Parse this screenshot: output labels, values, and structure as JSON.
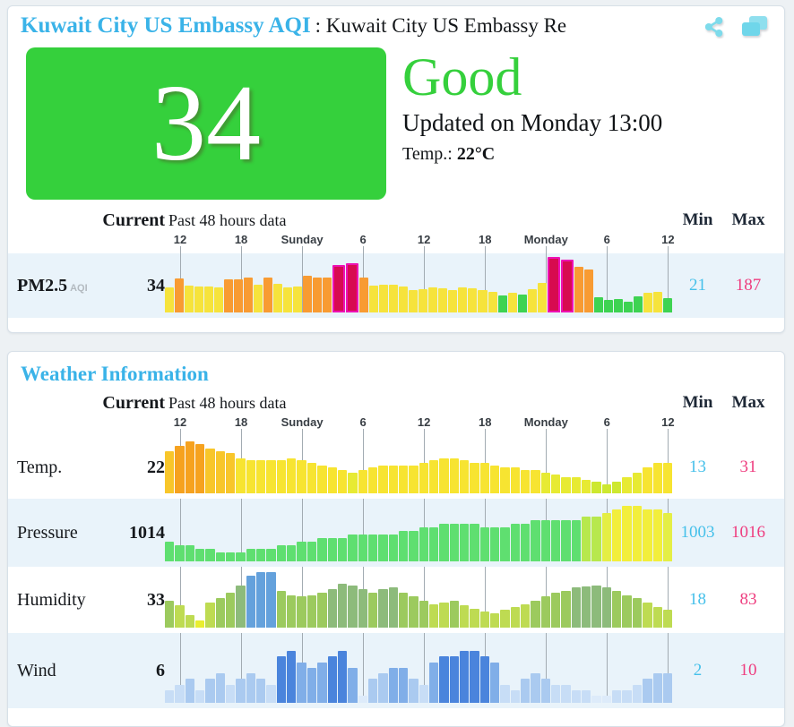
{
  "colors": {
    "accent_blue": "#3ab3e8",
    "good_green": "#35d03c",
    "min_blue": "#45c0ea",
    "max_pink": "#ee3d7f",
    "row_band": "#e9f3fa",
    "icon_cyan": "#7edbeb"
  },
  "card1": {
    "title_blue": "Kuwait City US Embassy AQI",
    "title_rest": ": Kuwait City US Embassy Re",
    "icons": [
      "share-icon",
      "copy-icon"
    ],
    "aqi": {
      "value": "34",
      "category": "Good",
      "updated": "Updated on Monday 13:00",
      "temp_label": "Temp.:",
      "temp_value": "22°C"
    },
    "header": {
      "current": "Current",
      "past": "Past 48 hours data",
      "min": "Min",
      "max": "Max"
    }
  },
  "card2": {
    "title": "Weather Information",
    "header": {
      "current": "Current",
      "past": "Past 48 hours data",
      "min": "Min",
      "max": "Max"
    }
  },
  "ticks": {
    "labels": [
      "12",
      "18",
      "Sunday",
      "6",
      "12",
      "18",
      "Monday",
      "6",
      "12"
    ],
    "positions": [
      1,
      7,
      13,
      19,
      25,
      31,
      37,
      43,
      49
    ]
  },
  "chart_data": [
    {
      "id": "pm25",
      "type": "bar",
      "card": 1,
      "row_label": "PM2.5",
      "row_sublabel": "AQI",
      "bold_label": true,
      "title": "PM2.5 AQI past 48 hours",
      "current": 34,
      "min": 21,
      "max": 187,
      "band": "blue",
      "band_height": 72,
      "hscale": {
        "floor": 0,
        "ceil": 187,
        "base": 6,
        "span": 56
      },
      "scale": [
        {
          "max": 50,
          "color": "#3ed352"
        },
        {
          "max": 100,
          "color": "#f6e33c"
        },
        {
          "max": 150,
          "color": "#f89b32"
        },
        {
          "max": 999,
          "color": "#d70b50",
          "border": "#ee12b4"
        }
      ],
      "values": [
        72,
        108,
        80,
        78,
        76,
        75,
        104,
        103,
        112,
        84,
        110,
        88,
        72,
        76,
        118,
        112,
        112,
        158,
        164,
        112,
        80,
        82,
        84,
        78,
        64,
        68,
        74,
        70,
        64,
        74,
        70,
        64,
        58,
        44,
        54,
        46,
        66,
        90,
        187,
        176,
        149,
        139,
        36,
        26,
        30,
        21,
        40,
        54,
        56,
        34
      ]
    },
    {
      "id": "temp",
      "type": "bar",
      "card": 2,
      "row_label": "Temp.",
      "row_sublabel": "",
      "bold_label": false,
      "title": "Temperature past 48 hours",
      "current": 22,
      "min": 13,
      "max": 31,
      "band": "white",
      "band_height": 70,
      "hscale": {
        "floor": 13,
        "ceil": 31,
        "base": 10,
        "span": 48
      },
      "scale": [
        {
          "max": 14,
          "color": "#cde82f"
        },
        {
          "max": 18,
          "color": "#e7ea33"
        },
        {
          "max": 24,
          "color": "#f7e431"
        },
        {
          "max": 28,
          "color": "#f8c62a"
        },
        {
          "max": 99,
          "color": "#f6a21f"
        }
      ],
      "values": [
        27,
        29,
        31,
        30,
        28,
        27,
        26,
        24,
        23,
        23,
        23,
        23,
        24,
        23,
        22,
        21,
        20,
        19,
        18,
        19,
        20,
        21,
        21,
        21,
        21,
        22,
        23,
        24,
        24,
        23,
        22,
        22,
        21,
        20,
        20,
        19,
        19,
        18,
        17,
        16,
        16,
        15,
        14,
        13,
        14,
        16,
        18,
        20,
        22,
        22
      ]
    },
    {
      "id": "pressure",
      "type": "bar",
      "card": 2,
      "row_label": "Pressure",
      "row_sublabel": "",
      "bold_label": false,
      "title": "Pressure past 48 hours",
      "current": 1014,
      "min": 1003,
      "max": 1016,
      "band": "blue",
      "band_height": 76,
      "hscale": {
        "floor": 1003,
        "ceil": 1016,
        "base": 10,
        "span": 52
      },
      "scale": [
        {
          "max": 1012,
          "color": "#5fdf70"
        },
        {
          "max": 1013,
          "color": "#b7e84d"
        },
        {
          "max": 1014,
          "color": "#e4ee45"
        },
        {
          "max": 2000,
          "color": "#f2ee3c"
        }
      ],
      "values": [
        1006,
        1005,
        1005,
        1004,
        1004,
        1003,
        1003,
        1003,
        1004,
        1004,
        1004,
        1005,
        1005,
        1006,
        1006,
        1007,
        1007,
        1007,
        1008,
        1008,
        1008,
        1008,
        1008,
        1009,
        1009,
        1010,
        1010,
        1011,
        1011,
        1011,
        1011,
        1010,
        1010,
        1010,
        1011,
        1011,
        1012,
        1012,
        1012,
        1012,
        1012,
        1013,
        1013,
        1014,
        1015,
        1016,
        1016,
        1015,
        1015,
        1014
      ]
    },
    {
      "id": "humidity",
      "type": "bar",
      "card": 2,
      "row_label": "Humidity",
      "row_sublabel": "",
      "bold_label": false,
      "title": "Humidity past 48 hours",
      "current": 33,
      "min": 18,
      "max": 83,
      "band": "white",
      "band_height": 74,
      "hscale": {
        "floor": 18,
        "ceil": 83,
        "base": 8,
        "span": 54
      },
      "scale": [
        {
          "max": 24,
          "color": "#e9ee2f"
        },
        {
          "max": 44,
          "color": "#bedb52"
        },
        {
          "max": 59,
          "color": "#9cca5e"
        },
        {
          "max": 74,
          "color": "#8dbb7b"
        },
        {
          "max": 101,
          "color": "#64a1dc"
        }
      ],
      "values": [
        45,
        38,
        25,
        18,
        42,
        48,
        55,
        65,
        78,
        83,
        83,
        58,
        52,
        50,
        52,
        55,
        60,
        68,
        65,
        60,
        55,
        60,
        62,
        55,
        50,
        45,
        40,
        42,
        45,
        38,
        34,
        30,
        28,
        32,
        36,
        40,
        45,
        50,
        55,
        58,
        62,
        64,
        65,
        62,
        58,
        52,
        48,
        42,
        36,
        33
      ]
    },
    {
      "id": "wind",
      "type": "bar",
      "card": 2,
      "row_label": "Wind",
      "row_sublabel": "",
      "bold_label": false,
      "title": "Wind past 48 hours",
      "current": 6,
      "min": 2,
      "max": 10,
      "band": "blue",
      "band_height": 84,
      "hscale": {
        "floor": 2,
        "ceil": 10,
        "base": 8,
        "span": 50
      },
      "scale": [
        {
          "max": 2,
          "color": "#ddebfa"
        },
        {
          "max": 4,
          "color": "#c7ddf6"
        },
        {
          "max": 6,
          "color": "#aacaf0"
        },
        {
          "max": 8,
          "color": "#80aee8"
        },
        {
          "max": 99,
          "color": "#4a84dc"
        }
      ],
      "values": [
        3,
        4,
        5,
        3,
        5,
        6,
        4,
        5,
        6,
        5,
        4,
        9,
        10,
        8,
        7,
        8,
        9,
        10,
        7,
        2,
        5,
        6,
        7,
        7,
        5,
        4,
        8,
        9,
        9,
        10,
        10,
        9,
        8,
        4,
        3,
        5,
        6,
        5,
        4,
        4,
        3,
        3,
        2,
        2,
        3,
        3,
        4,
        5,
        6,
        6
      ]
    }
  ]
}
